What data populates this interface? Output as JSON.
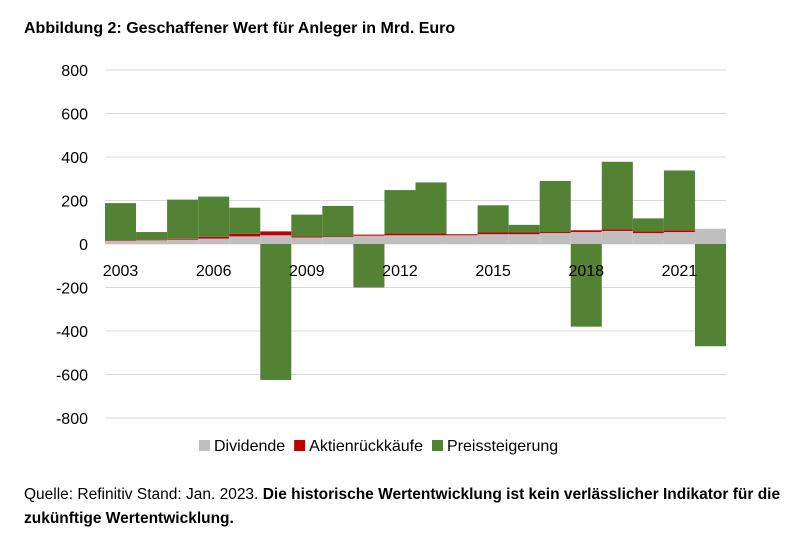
{
  "title": "Abbildung 2: Geschaffener Wert für Anleger in Mrd. Euro",
  "source_prefix": "Quelle: Refinitiv Stand: Jan. 2023.",
  "source_bold": "Die historische Wertentwicklung ist kein verlässlicher Indikator für die zukünftige Wertentwicklung.",
  "colors": {
    "dividende": "#bfbfbf",
    "aktien": "#c00000",
    "preis": "#548235",
    "grid": "#d9d9d9"
  },
  "chart_data": {
    "type": "bar",
    "stacked": true,
    "title": "Abbildung 2: Geschaffener Wert für Anleger in Mrd. Euro",
    "categories": [
      2003,
      2004,
      2005,
      2006,
      2007,
      2008,
      2009,
      2010,
      2011,
      2012,
      2013,
      2014,
      2015,
      2016,
      2017,
      2018,
      2019,
      2020,
      2021,
      2022
    ],
    "x_tick_labels": [
      "2003",
      "2006",
      "2009",
      "2012",
      "2015",
      "2018",
      "2021"
    ],
    "series": [
      {
        "name": "Dividende",
        "values": [
          15,
          17,
          20,
          25,
          35,
          40,
          30,
          32,
          38,
          40,
          40,
          40,
          45,
          45,
          50,
          55,
          60,
          50,
          55,
          70
        ]
      },
      {
        "name": "Aktienrückkäufe",
        "values": [
          3,
          3,
          4,
          8,
          12,
          18,
          5,
          3,
          5,
          8,
          8,
          5,
          8,
          8,
          5,
          8,
          8,
          8,
          8,
          0
        ]
      },
      {
        "name": "Preissteigerung",
        "values": [
          170,
          35,
          180,
          185,
          120,
          -625,
          100,
          140,
          -200,
          200,
          235,
          0,
          125,
          35,
          235,
          -380,
          310,
          60,
          275,
          -470
        ]
      }
    ],
    "legend": [
      "Dividende",
      "Aktienrückkäufe",
      "Preissteigerung"
    ],
    "legend_position": "bottom",
    "y_ticks": [
      "800",
      "600",
      "400",
      "200",
      "0",
      "-200",
      "-400",
      "-600",
      "-800"
    ],
    "ylim": [
      -800,
      800
    ],
    "xlabel": "",
    "ylabel": "",
    "grid": true
  }
}
